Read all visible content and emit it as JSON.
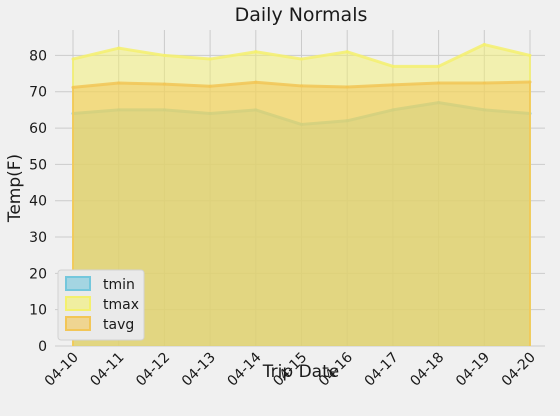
{
  "chart_data": {
    "type": "area",
    "title": "Daily Normals",
    "xlabel": "Trip Date",
    "ylabel": "Temp(F)",
    "categories": [
      "04-10",
      "04-11",
      "04-12",
      "04-13",
      "04-14",
      "04-15",
      "04-16",
      "04-17",
      "04-18",
      "04-19",
      "04-20"
    ],
    "ylim": [
      0,
      87
    ],
    "yticks": [
      0,
      10,
      20,
      30,
      40,
      50,
      60,
      70,
      80
    ],
    "grid": true,
    "legend_position": "lower-left",
    "series": [
      {
        "name": "tmin",
        "color": "#74c7dc",
        "values": [
          64,
          65,
          65,
          64,
          65,
          61,
          62,
          65,
          67,
          65,
          64
        ]
      },
      {
        "name": "tmax",
        "color": "#f4f06e",
        "values": [
          79,
          82,
          80,
          79,
          81,
          79,
          81,
          77,
          77,
          83,
          80
        ]
      },
      {
        "name": "tavg",
        "color": "#f2c657",
        "values": [
          71.2,
          72.4,
          72.1,
          71.5,
          72.6,
          71.6,
          71.3,
          71.9,
          72.4,
          72.4,
          72.7
        ]
      }
    ]
  }
}
